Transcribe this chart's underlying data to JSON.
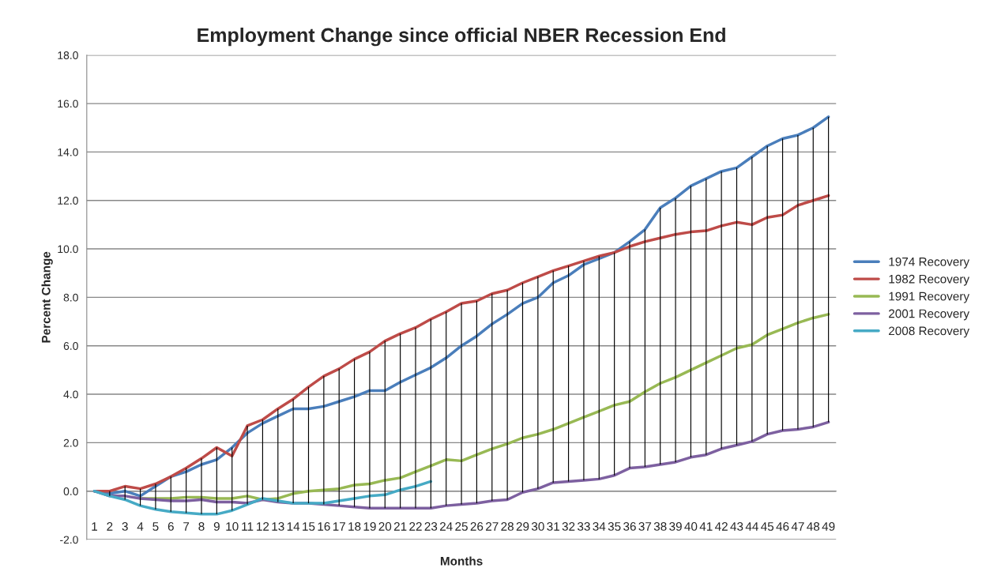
{
  "chart_data": {
    "type": "line",
    "title": "Employment Change since official NBER Recession End",
    "xlabel": "Months",
    "ylabel": "Percent Change",
    "categories": [
      "1",
      "2",
      "3",
      "4",
      "5",
      "6",
      "7",
      "8",
      "9",
      "10",
      "11",
      "12",
      "13",
      "14",
      "15",
      "16",
      "17",
      "18",
      "19",
      "20",
      "21",
      "22",
      "23",
      "24",
      "25",
      "26",
      "27",
      "28",
      "29",
      "30",
      "31",
      "32",
      "33",
      "34",
      "35",
      "36",
      "37",
      "38",
      "39",
      "40",
      "41",
      "42",
      "43",
      "44",
      "45",
      "46",
      "47",
      "48",
      "49"
    ],
    "series": [
      {
        "name": "1974 Recovery",
        "color": "#4a7ebb",
        "values": [
          0,
          -0.1,
          0,
          -0.2,
          0.2,
          0.6,
          0.8,
          1.1,
          1.3,
          1.8,
          2.4,
          2.8,
          3.1,
          3.4,
          3.4,
          3.5,
          3.7,
          3.9,
          4.15,
          4.15,
          4.5,
          4.8,
          5.1,
          5.5,
          6.0,
          6.4,
          6.9,
          7.3,
          7.75,
          8.0,
          8.6,
          8.9,
          9.35,
          9.6,
          9.85,
          10.3,
          10.8,
          11.7,
          12.1,
          12.6,
          12.9,
          13.2,
          13.35,
          13.8,
          14.25,
          14.55,
          14.7,
          15.0,
          15.45
        ]
      },
      {
        "name": "1982 Recovery",
        "color": "#be4b48",
        "values": [
          0,
          0,
          0.2,
          0.1,
          0.3,
          0.6,
          0.95,
          1.35,
          1.8,
          1.45,
          2.7,
          2.95,
          3.4,
          3.8,
          4.3,
          4.75,
          5.05,
          5.45,
          5.75,
          6.2,
          6.5,
          6.75,
          7.1,
          7.4,
          7.75,
          7.85,
          8.15,
          8.3,
          8.6,
          8.85,
          9.1,
          9.3,
          9.5,
          9.7,
          9.85,
          10.1,
          10.3,
          10.45,
          10.6,
          10.7,
          10.75,
          10.95,
          11.1,
          11.0,
          11.3,
          11.4,
          11.8,
          12.0,
          12.2
        ]
      },
      {
        "name": "1991 Recovery",
        "color": "#98b954",
        "values": [
          null,
          null,
          null,
          -0.3,
          -0.3,
          -0.3,
          -0.25,
          -0.25,
          -0.3,
          -0.3,
          -0.2,
          -0.35,
          -0.3,
          -0.1,
          0.0,
          0.05,
          0.1,
          0.25,
          0.3,
          0.45,
          0.55,
          0.8,
          1.05,
          1.3,
          1.25,
          1.5,
          1.75,
          1.95,
          2.2,
          2.35,
          2.55,
          2.8,
          3.05,
          3.3,
          3.55,
          3.7,
          4.1,
          4.45,
          4.7,
          5.0,
          5.3,
          5.6,
          5.9,
          6.05,
          6.45,
          6.7,
          6.95,
          7.15,
          7.3
        ]
      },
      {
        "name": "2001 Recovery",
        "color": "#7d60a0",
        "values": [
          0,
          -0.2,
          -0.2,
          -0.3,
          -0.35,
          -0.4,
          -0.4,
          -0.35,
          -0.45,
          -0.45,
          -0.5,
          -0.35,
          -0.45,
          -0.5,
          -0.5,
          -0.55,
          -0.6,
          -0.65,
          -0.7,
          -0.7,
          -0.7,
          -0.7,
          -0.7,
          -0.6,
          -0.55,
          -0.5,
          -0.4,
          -0.35,
          -0.05,
          0.1,
          0.35,
          0.4,
          0.45,
          0.5,
          0.65,
          0.95,
          1.0,
          1.1,
          1.2,
          1.4,
          1.5,
          1.75,
          1.9,
          2.05,
          2.35,
          2.5,
          2.55,
          2.65,
          2.85
        ]
      },
      {
        "name": "2008 Recovery",
        "color": "#46aac5",
        "values": [
          0,
          -0.2,
          -0.35,
          -0.6,
          -0.75,
          -0.85,
          -0.9,
          -0.95,
          -0.95,
          -0.8,
          -0.55,
          -0.3,
          -0.4,
          -0.5,
          -0.5,
          -0.5,
          -0.4,
          -0.3,
          -0.2,
          -0.15,
          0.05,
          0.2,
          0.4,
          null,
          null,
          null,
          null,
          null,
          null,
          null,
          null,
          null,
          null,
          null,
          null,
          null,
          null,
          null,
          null,
          null,
          null,
          null,
          null,
          null,
          null,
          null,
          null,
          null,
          null
        ]
      },
      {
        "type": "bar",
        "color": "#000000",
        "base": [
          null,
          -0.2,
          -0.35,
          -0.6,
          -0.75,
          -0.85,
          -0.9,
          -0.95,
          -0.95,
          -0.8,
          -0.55,
          -0.35,
          -0.45,
          -0.5,
          -0.5,
          -0.55,
          -0.6,
          -0.65,
          -0.7,
          -0.7,
          -0.7,
          -0.7,
          -0.7,
          -0.6,
          -0.55,
          -0.5,
          -0.4,
          -0.35,
          -0.05,
          0.1,
          0.35,
          0.4,
          0.45,
          0.5,
          0.65,
          0.95,
          1.0,
          1.1,
          1.2,
          1.4,
          1.5,
          1.75,
          1.9,
          2.05,
          2.35,
          2.5,
          2.55,
          2.65,
          2.85
        ],
        "values": [
          null,
          0.2,
          0.55,
          0.7,
          1.05,
          1.45,
          1.85,
          2.3,
          2.75,
          2.6,
          3.25,
          3.3,
          3.85,
          4.3,
          4.8,
          5.3,
          5.65,
          6.1,
          6.45,
          6.9,
          7.2,
          7.45,
          7.8,
          8.0,
          8.3,
          8.35,
          8.55,
          8.65,
          8.65,
          8.75,
          8.75,
          8.9,
          9.05,
          9.2,
          9.2,
          9.35,
          9.8,
          10.6,
          10.9,
          11.2,
          11.4,
          11.45,
          11.45,
          11.75,
          11.9,
          12.05,
          12.15,
          12.35,
          12.6
        ]
      }
    ],
    "ylim": [
      -2,
      18
    ],
    "yticks": [
      {
        "value": -2,
        "label": "-2.0"
      },
      {
        "value": 0,
        "label": "0.0"
      },
      {
        "value": 2,
        "label": "2.0"
      },
      {
        "value": 4,
        "label": "4.0"
      },
      {
        "value": 6,
        "label": "6.0"
      },
      {
        "value": 8,
        "label": "8.0"
      },
      {
        "value": 10,
        "label": "10.0"
      },
      {
        "value": 12,
        "label": "12.0"
      },
      {
        "value": 14,
        "label": "14.0"
      },
      {
        "value": 16,
        "label": "16.0"
      },
      {
        "value": 18,
        "label": "18.0"
      }
    ],
    "grid": "y",
    "legend": "right",
    "marker": "none",
    "line_style": "solid"
  }
}
